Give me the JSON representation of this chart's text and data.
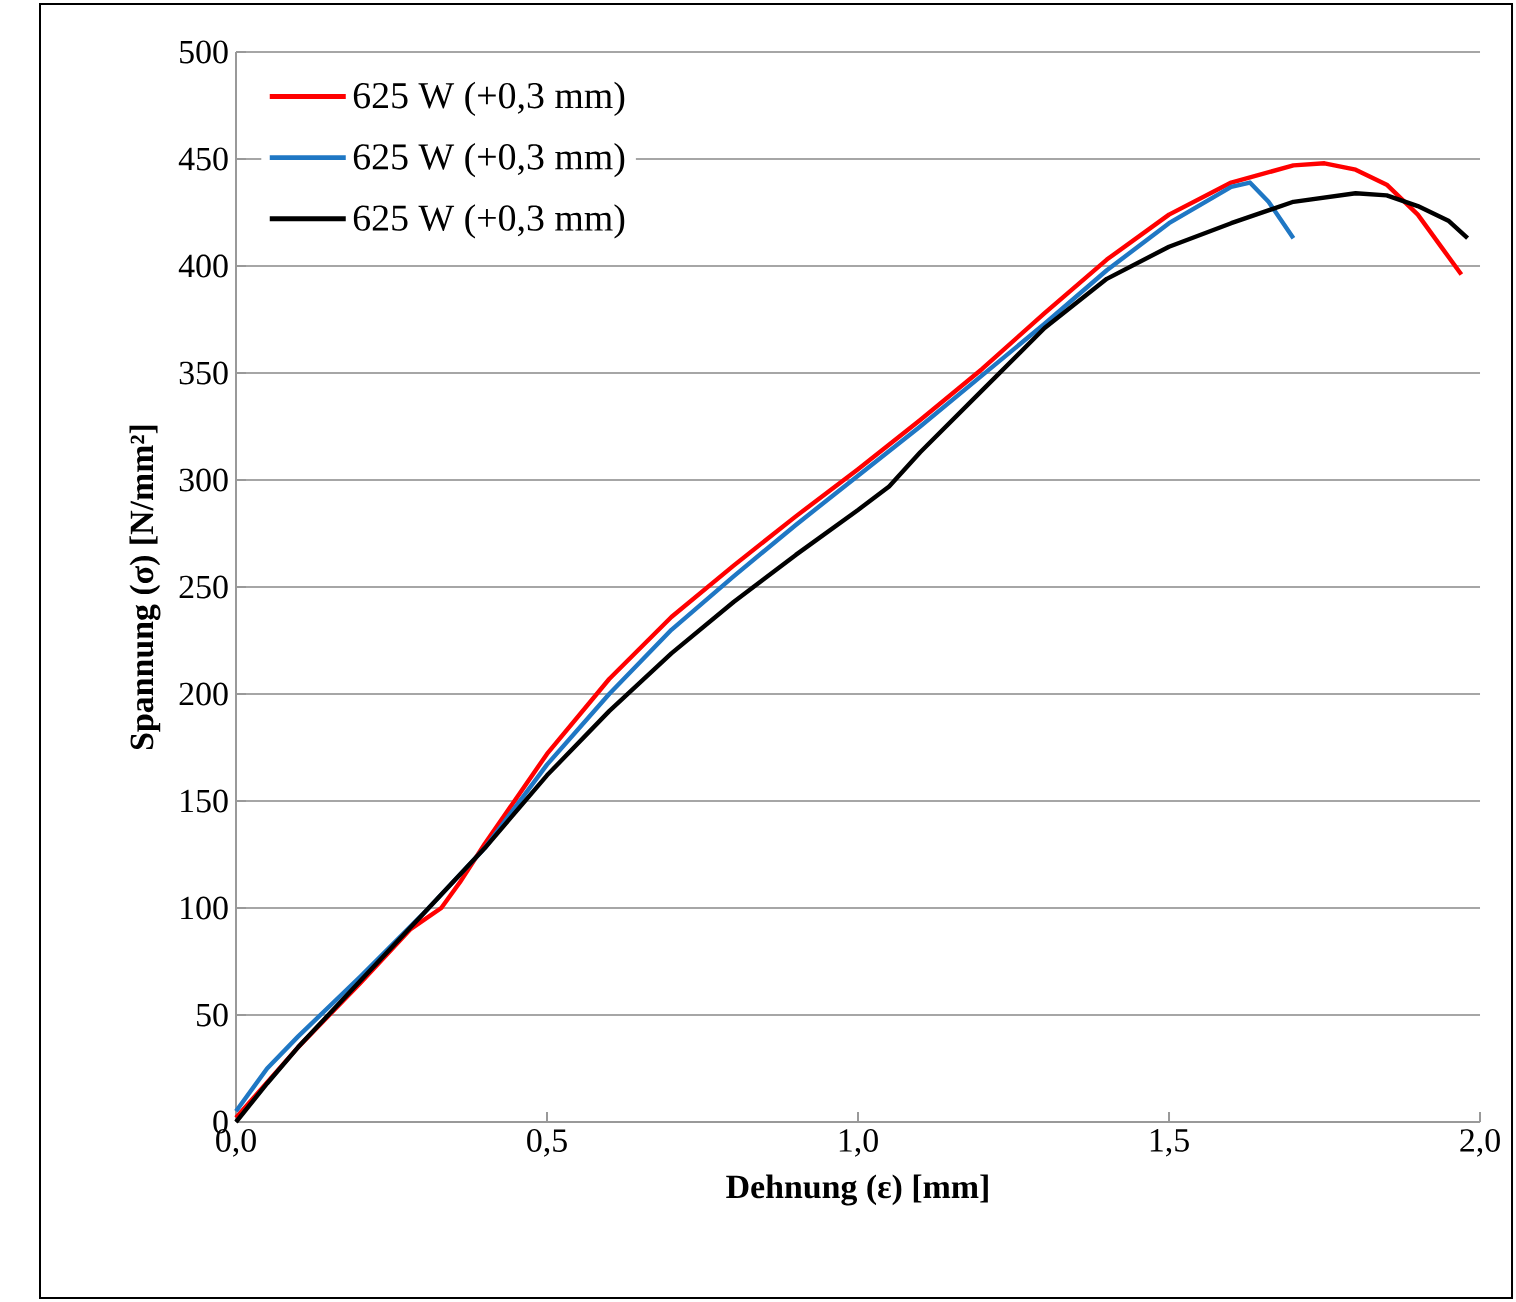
{
  "chart_data": {
    "type": "line",
    "xlabel": "Dehnung (ε) [mm]",
    "ylabel": "Spannung (σ) [N/mm²]",
    "xlim": [
      0,
      2
    ],
    "ylim": [
      0,
      500
    ],
    "xticks": [
      {
        "value": 0,
        "label": "0,0"
      },
      {
        "value": 0.5,
        "label": "0,5"
      },
      {
        "value": 1,
        "label": "1,0"
      },
      {
        "value": 1.5,
        "label": "1,5"
      },
      {
        "value": 2,
        "label": "2,0"
      }
    ],
    "yticks": [
      0,
      50,
      100,
      150,
      200,
      250,
      300,
      350,
      400,
      450,
      500
    ],
    "grid": "y",
    "legend": "top left",
    "marker": "none",
    "line_style": "solid",
    "series": [
      {
        "name": "625 W (+0,3 mm)",
        "color": "#ff0000",
        "x": [
          0,
          0.1,
          0.2,
          0.28,
          0.33,
          0.36,
          0.4,
          0.5,
          0.6,
          0.7,
          0.8,
          0.9,
          1.0,
          1.1,
          1.2,
          1.3,
          1.4,
          1.5,
          1.6,
          1.7,
          1.75,
          1.8,
          1.85,
          1.9,
          1.94,
          1.97
        ],
        "values": [
          2,
          35,
          65,
          90,
          100,
          112,
          130,
          172,
          207,
          236,
          260,
          283,
          305,
          328,
          352,
          378,
          403,
          424,
          439,
          447,
          448,
          445,
          438,
          424,
          408,
          396
        ]
      },
      {
        "name": "625 W (+0,3 mm)",
        "color": "#1f77c4",
        "x": [
          0,
          0.05,
          0.1,
          0.2,
          0.3,
          0.4,
          0.5,
          0.6,
          0.7,
          0.8,
          0.9,
          1.0,
          1.1,
          1.2,
          1.3,
          1.4,
          1.5,
          1.6,
          1.63,
          1.66,
          1.7
        ],
        "values": [
          5,
          25,
          40,
          68,
          97,
          128,
          167,
          200,
          230,
          255,
          279,
          302,
          325,
          349,
          373,
          398,
          420,
          437,
          439,
          430,
          413
        ]
      },
      {
        "name": "625 W (+0,3 mm)",
        "color": "#000000",
        "x": [
          0,
          0.05,
          0.1,
          0.2,
          0.3,
          0.4,
          0.5,
          0.6,
          0.7,
          0.8,
          0.9,
          1.0,
          1.05,
          1.1,
          1.2,
          1.3,
          1.4,
          1.5,
          1.6,
          1.7,
          1.8,
          1.85,
          1.9,
          1.95,
          1.98
        ],
        "values": [
          0,
          18,
          35,
          66,
          97,
          128,
          162,
          192,
          219,
          243,
          265,
          286,
          297,
          313,
          342,
          371,
          394,
          409,
          420,
          430,
          434,
          433,
          428,
          421,
          413
        ]
      }
    ]
  }
}
